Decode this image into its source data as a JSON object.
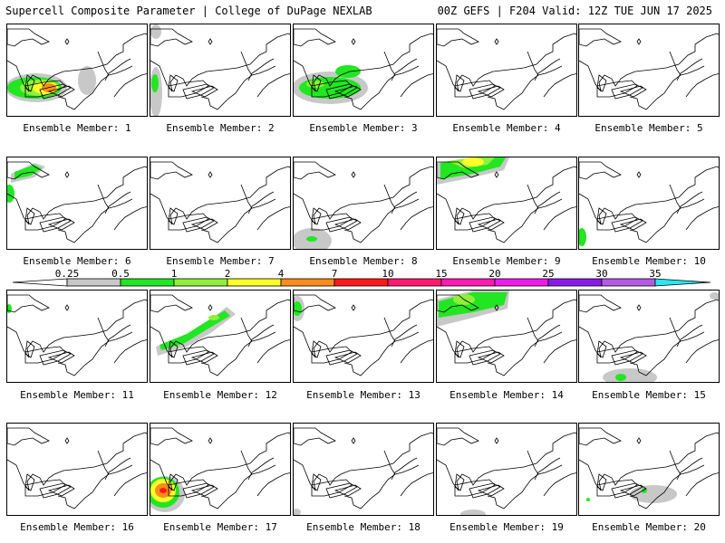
{
  "header": {
    "left": "Supercell Composite Parameter | College of DuPage NEXLAB",
    "right": "00Z GEFS | F204 Valid: 12Z TUE JUN 17 2025"
  },
  "colorbar": {
    "bins": [
      {
        "label": "0.25",
        "color": "#c8c8c8"
      },
      {
        "label": "0.5",
        "color": "#22e622"
      },
      {
        "label": "1",
        "color": "#8ef03a"
      },
      {
        "label": "2",
        "color": "#ffff2a"
      },
      {
        "label": "4",
        "color": "#ff8c1a"
      },
      {
        "label": "7",
        "color": "#ff1a1a"
      },
      {
        "label": "10",
        "color": "#ff1a6e"
      },
      {
        "label": "15",
        "color": "#ff1ab4"
      },
      {
        "label": "20",
        "color": "#ee1aee"
      },
      {
        "label": "25",
        "color": "#8c1ae6"
      },
      {
        "label": "30",
        "color": "#b45ae6"
      },
      {
        "label": "35",
        "color": "#28e6f0"
      }
    ]
  },
  "members": [
    {
      "caption": "Ensemble Member: 1"
    },
    {
      "caption": "Ensemble Member: 2"
    },
    {
      "caption": "Ensemble Member: 3"
    },
    {
      "caption": "Ensemble Member: 4"
    },
    {
      "caption": "Ensemble Member: 5"
    },
    {
      "caption": "Ensemble Member: 6"
    },
    {
      "caption": "Ensemble Member: 7"
    },
    {
      "caption": "Ensemble Member: 8"
    },
    {
      "caption": "Ensemble Member: 9"
    },
    {
      "caption": "Ensemble Member: 10"
    },
    {
      "caption": "Ensemble Member: 11"
    },
    {
      "caption": "Ensemble Member: 12"
    },
    {
      "caption": "Ensemble Member: 13"
    },
    {
      "caption": "Ensemble Member: 14"
    },
    {
      "caption": "Ensemble Member: 15"
    },
    {
      "caption": "Ensemble Member: 16"
    },
    {
      "caption": "Ensemble Member: 17"
    },
    {
      "caption": "Ensemble Member: 18"
    },
    {
      "caption": "Ensemble Member: 19"
    },
    {
      "caption": "Ensemble Member: 20"
    }
  ]
}
